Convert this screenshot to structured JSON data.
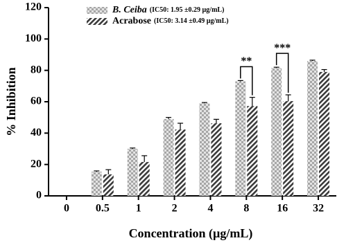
{
  "chart_data": {
    "type": "bar",
    "x_label": "Concentration (µg/mL)",
    "y_label": "% Inhibition",
    "categories": [
      "0",
      "0.5",
      "1",
      "2",
      "4",
      "8",
      "16",
      "32"
    ],
    "series": [
      {
        "name": "B. Ceiba",
        "note": "(IC50: 1.95 ±0.29 µg/mL)",
        "color": "#a6a6a6",
        "values": [
          0,
          15.4,
          30,
          49,
          59,
          73,
          81.5,
          86
        ],
        "errors": [
          0,
          0.5,
          0.5,
          1,
          0.5,
          0.5,
          0.5,
          0.5
        ]
      },
      {
        "name": "Acrabose",
        "note": "(IC50: 3.14 ±0.49 µg/mL)",
        "color": "#3a3a3a",
        "values": [
          0,
          13.7,
          21.6,
          42.3,
          46.3,
          57.3,
          60.4,
          79
        ],
        "errors": [
          0,
          3,
          4,
          4,
          2.5,
          5.5,
          4,
          1.5
        ]
      }
    ],
    "significance": [
      null,
      null,
      null,
      null,
      null,
      "**",
      "***",
      null
    ],
    "ylim": [
      0,
      120
    ],
    "yticks": [
      0,
      20,
      40,
      60,
      80,
      100,
      120
    ]
  }
}
